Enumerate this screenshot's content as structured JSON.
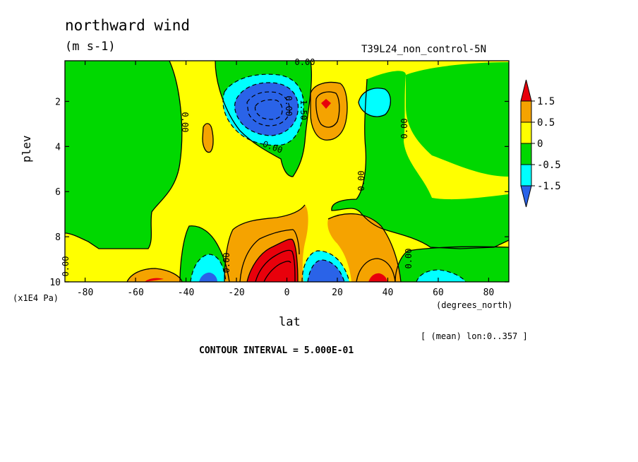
{
  "chart_data": {
    "type": "heatmap",
    "title": "northward wind",
    "units": "(m s-1)",
    "run_label": "T39L24_non_control-5N",
    "xlabel": "lat",
    "x_units": "(degrees_north)",
    "ylabel": "plev",
    "y_units": "(x1E4 Pa)",
    "xlim": [
      -88,
      88
    ],
    "ylim": [
      10,
      0.2
    ],
    "xticks": [
      -80,
      -60,
      -40,
      -20,
      0,
      20,
      40,
      60,
      80
    ],
    "xtick_labels": [
      "-80",
      "-60",
      "-40",
      "-20",
      "0",
      "20",
      "40",
      "60",
      "80"
    ],
    "yticks": [
      2,
      4,
      6,
      8,
      10
    ],
    "ytick_labels": [
      "2",
      "4",
      "6",
      "8",
      "10"
    ],
    "averaging_note": "[ (mean) lon:0..357 ]",
    "contour_interval_text": "CONTOUR INTERVAL = 5.000E-01",
    "contour_labels": [
      "0.00",
      "0.00",
      "0.00",
      "0.00",
      "0.00",
      "0.00",
      "0.00",
      "0.00",
      "0.00",
      "-1.50"
    ],
    "colorbar": {
      "levels": [
        1.5,
        0.5,
        0,
        -0.5,
        -1.5
      ],
      "labels": [
        "1.5",
        "0.5",
        "0",
        "-0.5",
        "-1.5"
      ],
      "colors": [
        "#e8000b",
        "#f5a300",
        "#ffff00",
        "#00d800",
        "#00ffff",
        "#2a63e8"
      ]
    },
    "features": [
      {
        "name": "tropical upper negative cell",
        "lat": -3,
        "plev": 2.2,
        "value": -2.7
      },
      {
        "name": "subtropical upper positive cell",
        "lat": 15,
        "plev": 2.0,
        "value": 1.6
      },
      {
        "name": "upper negative cell",
        "lat": 34,
        "plev": 2.0,
        "value": -0.6
      },
      {
        "name": "low-level positive jet",
        "lat": -5,
        "plev": 9.6,
        "value": 2.6
      },
      {
        "name": "low-level negative cell",
        "lat": 13,
        "plev": 9.6,
        "value": -1.7
      },
      {
        "name": "low-level negative cell",
        "lat": -32,
        "plev": 9.6,
        "value": -1.0
      },
      {
        "name": "low-level positive cell",
        "lat": 38,
        "plev": 9.6,
        "value": 1.1
      },
      {
        "name": "low-level positive cell",
        "lat": -52,
        "plev": 9.8,
        "value": 0.8
      }
    ]
  }
}
